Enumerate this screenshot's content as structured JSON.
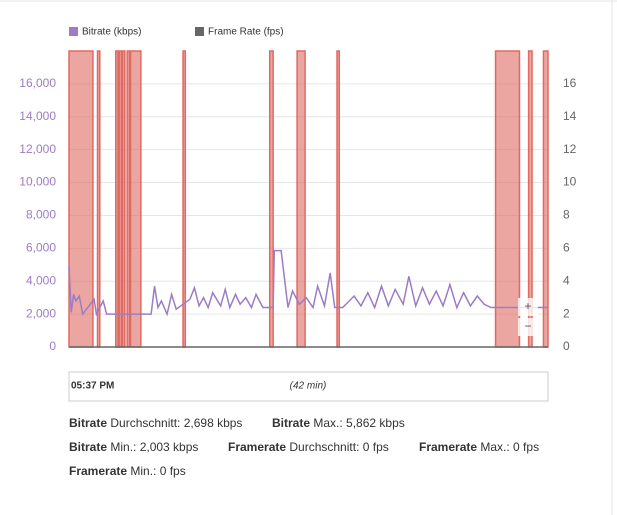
{
  "chart_data": {
    "type": "line",
    "legend": "top-left",
    "grid": true,
    "xlim": [
      0,
      42
    ],
    "ylim": [
      0,
      18000
    ],
    "yticks": [
      0,
      {
        "value": 2000,
        "label": "2,000"
      },
      {
        "value": 4000,
        "label": "4,000"
      },
      {
        "value": 6000,
        "label": "6,000"
      },
      {
        "value": 8000,
        "label": "8,000"
      },
      {
        "value": 10000,
        "label": "10,000"
      },
      {
        "value": 12000,
        "label": "12,000"
      },
      {
        "value": 14000,
        "label": "14,000"
      },
      {
        "value": 16000,
        "label": "16,000"
      }
    ],
    "y2lim": [
      0,
      18
    ],
    "y2ticks": [
      0,
      2,
      4,
      6,
      8,
      10,
      12,
      14,
      16
    ],
    "series": [
      {
        "name": "Bitrate (kbps)",
        "color": "#9c7cc4",
        "x": [
          0,
          0.2,
          0.4,
          0.6,
          0.9,
          1.2,
          2.2,
          2.4,
          3.0,
          3.3,
          4.0,
          7.2,
          7.5,
          7.8,
          8.1,
          8.6,
          9.0,
          9.4,
          10.6,
          11.0,
          11.4,
          11.8,
          12.2,
          12.6,
          13.3,
          13.7,
          14.1,
          14.6,
          15.0,
          15.5,
          16.0,
          16.4,
          17.0,
          17.9,
          18.0,
          18.6,
          19.2,
          19.6,
          20.2,
          20.8,
          21.4,
          21.8,
          22.4,
          22.9,
          23.3,
          24.0,
          25.0,
          25.6,
          26.2,
          26.8,
          27.4,
          28.0,
          28.6,
          29.3,
          29.8,
          30.4,
          31.0,
          31.6,
          32.2,
          32.8,
          33.4,
          34.0,
          34.6,
          35.2,
          35.8,
          36.4,
          37.0,
          42
        ],
        "values": [
          4900,
          2100,
          3200,
          2800,
          3100,
          2000,
          2900,
          2000,
          2800,
          2000,
          2000,
          2000,
          3700,
          2400,
          2800,
          2000,
          3200,
          2300,
          2900,
          3600,
          2500,
          3000,
          2400,
          3300,
          2500,
          3500,
          2400,
          3200,
          2600,
          3000,
          2400,
          3200,
          2400,
          2400,
          5862,
          5862,
          2400,
          3400,
          2600,
          3000,
          2400,
          3700,
          2500,
          4500,
          2400,
          2400,
          3100,
          2500,
          3300,
          2400,
          3700,
          2500,
          3500,
          2600,
          4300,
          2500,
          3600,
          2600,
          3400,
          2500,
          3800,
          2400,
          3300,
          2500,
          3100,
          2600,
          2400,
          2400
        ]
      },
      {
        "name": "Frame Rate (fps)",
        "color": "#666666",
        "axis": "y2",
        "x": [
          0,
          42
        ],
        "values": [
          0,
          0
        ]
      }
    ],
    "bands": [
      [
        0,
        2.1
      ],
      [
        2.5,
        2.7
      ],
      [
        4.1,
        4.3
      ],
      [
        4.4,
        4.6
      ],
      [
        4.7,
        4.9
      ],
      [
        5.1,
        5.3
      ],
      [
        5.4,
        6.3
      ],
      [
        10.0,
        10.2
      ],
      [
        17.6,
        17.9
      ],
      [
        20.0,
        20.7
      ],
      [
        23.5,
        23.7
      ],
      [
        37.4,
        39.5
      ],
      [
        40.3,
        40.6
      ],
      [
        41.6,
        42
      ]
    ],
    "band_color": "#e06a62",
    "navigator": {
      "start": "05:37 PM",
      "duration": "(42 min)"
    },
    "zoom": [
      "+",
      "−"
    ]
  },
  "stats": [
    {
      "label": "Bitrate",
      "text": "Durchschnitt: 2,698 kbps"
    },
    {
      "label": "Bitrate",
      "text": "Max.: 5,862 kbps"
    },
    {
      "label": "Bitrate",
      "text": "Min.: 2,003 kbps"
    },
    {
      "label": "Framerate",
      "text": "Durchschnitt: 0 fps"
    },
    {
      "label": "Framerate",
      "text": "Max.: 0 fps"
    },
    {
      "label": "Framerate",
      "text": "Min.: 0 fps"
    }
  ]
}
